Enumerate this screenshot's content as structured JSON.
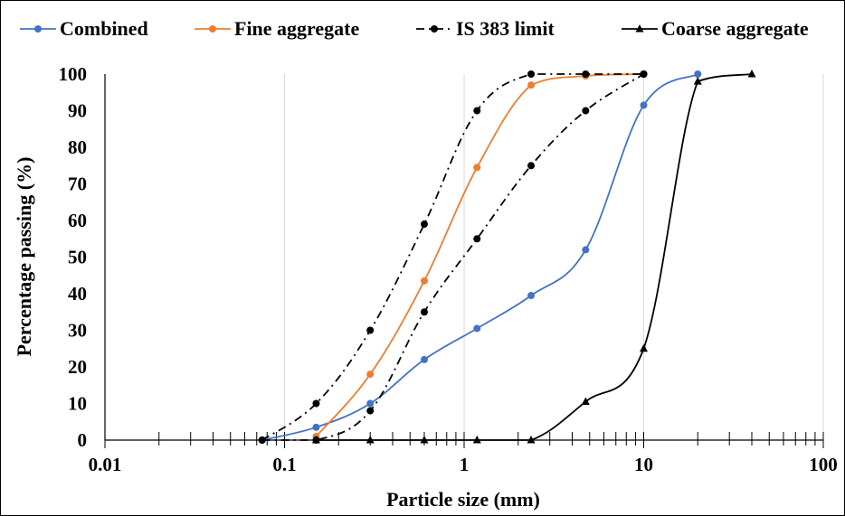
{
  "chart_data": {
    "type": "line",
    "xlabel": "Particle size (mm)",
    "ylabel": "Percentage passing (%)",
    "xscale": "log",
    "xlim": [
      0.01,
      100
    ],
    "ylim": [
      0,
      100
    ],
    "x_ticks": [
      "0.01",
      "0.1",
      "1",
      "10",
      "100"
    ],
    "y_ticks": [
      "0",
      "10",
      "20",
      "30",
      "40",
      "50",
      "60",
      "70",
      "80",
      "90",
      "100"
    ],
    "grid": "vertical major",
    "legend_position": "top",
    "series": [
      {
        "name": "Combined",
        "color": "#4472C4",
        "line_style": "solid",
        "marker": "circle",
        "x": [
          0.075,
          0.15,
          0.3,
          0.6,
          1.18,
          2.36,
          4.75,
          10,
          20
        ],
        "y": [
          0,
          3.5,
          10,
          22,
          30.5,
          39.5,
          52,
          91.5,
          100
        ]
      },
      {
        "name": "Fine aggregate",
        "color": "#ED7D31",
        "line_style": "solid",
        "marker": "circle",
        "x": [
          0.15,
          0.3,
          0.6,
          1.18,
          2.36,
          4.75,
          10
        ],
        "y": [
          1,
          18,
          43.5,
          74.5,
          97,
          99.5,
          100
        ]
      },
      {
        "name": "IS 383 limit",
        "color": "#000000",
        "line_style": "dashdot",
        "marker": "circle",
        "x": [
          0.075,
          0.15,
          0.3,
          0.6,
          1.18,
          2.36,
          4.75,
          10
        ],
        "y": [
          0,
          10,
          30,
          59,
          90,
          100,
          100,
          100
        ]
      },
      {
        "name": "IS 383 limit",
        "color": "#000000",
        "line_style": "dashdot",
        "marker": "circle",
        "show_in_legend": false,
        "x": [
          0.075,
          0.15,
          0.3,
          0.6,
          1.18,
          2.36,
          4.75,
          10
        ],
        "y": [
          0,
          0,
          8,
          35,
          55,
          75,
          90,
          100
        ]
      },
      {
        "name": "Coarse aggregate",
        "color": "#000000",
        "line_style": "solid",
        "marker": "triangle",
        "x": [
          0.15,
          0.3,
          0.6,
          1.18,
          2.36,
          4.75,
          10,
          20,
          40
        ],
        "y": [
          0,
          0,
          0,
          0,
          0,
          10.5,
          25,
          98,
          100
        ]
      }
    ]
  }
}
